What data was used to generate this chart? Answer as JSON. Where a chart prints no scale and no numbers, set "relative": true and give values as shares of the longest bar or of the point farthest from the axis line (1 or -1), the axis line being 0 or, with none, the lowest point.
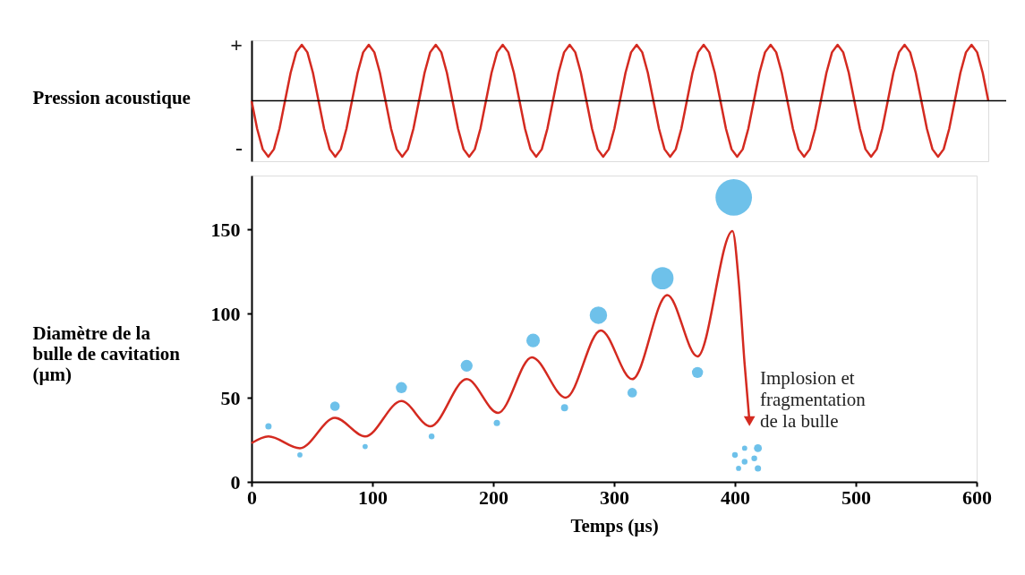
{
  "chart_data": [
    {
      "type": "line",
      "ylabel": "Pression acoustique",
      "relative": true,
      "tick_labels": false,
      "grid": false,
      "marker": "none",
      "line_style": "solid",
      "annotations": [
        "+",
        "-"
      ],
      "categories": [
        null,
        null,
        null,
        null,
        null,
        null,
        null,
        null,
        null,
        null,
        null,
        null,
        null,
        null,
        null,
        null,
        null,
        null,
        null,
        null,
        null,
        null,
        null,
        null,
        null,
        null,
        null,
        null,
        null,
        null,
        null,
        null,
        null,
        null,
        null,
        null,
        null,
        null,
        null,
        null,
        null,
        null,
        null,
        null,
        null,
        null,
        null,
        null,
        null,
        null,
        null,
        null,
        null,
        null,
        null,
        null,
        null,
        null,
        null,
        null,
        null,
        null,
        null,
        null,
        null,
        null,
        null,
        null,
        null,
        null,
        null,
        null,
        null,
        null,
        null,
        null,
        null,
        null,
        null,
        null,
        null,
        null,
        null,
        null,
        null,
        null,
        null,
        null,
        null,
        null,
        null,
        null,
        null,
        null,
        null,
        null,
        null,
        null,
        null,
        null,
        null,
        null,
        null,
        null,
        null,
        null,
        null,
        null,
        null,
        null,
        null,
        null,
        null,
        null,
        null,
        null,
        null,
        null,
        null,
        null,
        null,
        null,
        null,
        null,
        null,
        null,
        null,
        null,
        null,
        null,
        null,
        null,
        null
      ],
      "series": [
        {
          "color": "#d42a20",
          "values": [
            0,
            -0.5,
            -0.866,
            -1,
            -0.866,
            -0.5,
            0,
            0.5,
            0.866,
            1,
            0.866,
            0.5,
            0,
            -0.5,
            -0.866,
            -1,
            -0.866,
            -0.5,
            0,
            0.5,
            0.866,
            1,
            0.866,
            0.5,
            0,
            -0.5,
            -0.866,
            -1,
            -0.866,
            -0.5,
            0,
            0.5,
            0.866,
            1,
            0.866,
            0.5,
            0,
            -0.5,
            -0.866,
            -1,
            -0.866,
            -0.5,
            0,
            0.5,
            0.866,
            1,
            0.866,
            0.5,
            0,
            -0.5,
            -0.866,
            -1,
            -0.866,
            -0.5,
            0,
            0.5,
            0.866,
            1,
            0.866,
            0.5,
            0,
            -0.5,
            -0.866,
            -1,
            -0.866,
            -0.5,
            0,
            0.5,
            0.866,
            1,
            0.866,
            0.5,
            0,
            -0.5,
            -0.866,
            -1,
            -0.866,
            -0.5,
            0,
            0.5,
            0.866,
            1,
            0.866,
            0.5,
            0,
            -0.5,
            -0.866,
            -1,
            -0.866,
            -0.5,
            0,
            0.5,
            0.866,
            1,
            0.866,
            0.5,
            0,
            -0.5,
            -0.866,
            -1,
            -0.866,
            -0.5,
            0,
            0.5,
            0.866,
            1,
            0.866,
            0.5,
            0,
            -0.5,
            -0.866,
            -1,
            -0.866,
            -0.5,
            0,
            0.5,
            0.866,
            1,
            0.866,
            0.5,
            0,
            -0.5,
            -0.866,
            -1,
            -0.866,
            -0.5,
            0,
            0.5,
            0.866,
            1,
            0.866,
            0.5,
            0
          ]
        }
      ]
    },
    {
      "type": "line",
      "xlabel": "Temps  (µs)",
      "ylabel": "Diamètre de la bulle de cavitation (µm)",
      "xlim": [
        0,
        600
      ],
      "ylim": [
        0,
        182
      ],
      "xticks": [
        0,
        100,
        200,
        300,
        400,
        500,
        600
      ],
      "yticks": [
        0,
        50,
        100,
        150
      ],
      "grid": false,
      "marker": "none",
      "line_style": "solid",
      "annotations": [
        "Implosion et fragmentation de la bulle"
      ],
      "series": [
        {
          "type": "line",
          "color": "#d42a20",
          "x": [
            0,
            14,
            40,
            69,
            94,
            124,
            148,
            178,
            204,
            232,
            260,
            289,
            315,
            344,
            369,
            398,
            403,
            408,
            412
          ],
          "values": [
            23,
            27,
            20,
            38,
            27,
            48,
            33,
            61,
            41,
            74,
            50,
            90,
            61,
            111,
            74.5,
            149,
            120,
            70,
            36
          ]
        },
        {
          "type": "bubble",
          "color": "#6ec1ea",
          "x": [
            14,
            40,
            69,
            94,
            124,
            149,
            178,
            203,
            233,
            259,
            287,
            315,
            340,
            369,
            399,
            400,
            408,
            419,
            416,
            408,
            403,
            419
          ],
          "values": [
            33,
            16,
            45,
            21,
            56,
            27,
            69,
            35,
            84,
            44,
            99,
            53,
            121,
            65,
            169,
            16,
            20,
            20,
            14,
            12,
            8,
            8
          ],
          "sizes": [
            0.03,
            0.02,
            0.068,
            0.02,
            0.093,
            0.025,
            0.106,
            0.03,
            0.137,
            0.038,
            0.229,
            0.068,
            0.37,
            0.093,
            1,
            0.025,
            0.02,
            0.047,
            0.025,
            0.025,
            0.02,
            0.03
          ]
        }
      ]
    }
  ]
}
